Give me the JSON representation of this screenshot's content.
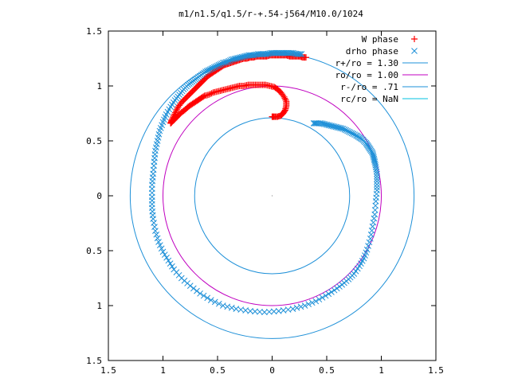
{
  "chart_data": {
    "type": "scatter",
    "title": "m1/n1.5/q1.5/r-+.54-j564/M10.0/1024",
    "xlabel": "",
    "ylabel": "",
    "xlim": [
      -1.5,
      1.5
    ],
    "ylim": [
      -1.5,
      1.5
    ],
    "x_ticks": [
      -1.5,
      -1,
      -0.5,
      0,
      0.5,
      1,
      1.5
    ],
    "x_tick_labels": [
      "1.5",
      "1",
      "0.5",
      "0",
      "0.5",
      "1",
      "1.5"
    ],
    "y_ticks": [
      1.5,
      1,
      0.5,
      0,
      -0.5,
      -1,
      -1.5
    ],
    "y_tick_labels": [
      "1.5",
      "1",
      "0.5",
      "0",
      "0.5",
      "1",
      "1.5"
    ],
    "grid": false,
    "legend_position": "top-right",
    "series": [
      {
        "name": "W phase",
        "kind": "points",
        "marker": "plus",
        "color": "#ff0000",
        "x": [
          0.31,
          0.28,
          0.25,
          0.22,
          0.19,
          0.16,
          0.13,
          0.1,
          0.07,
          0.04,
          0.01,
          -0.02,
          -0.05,
          -0.08,
          -0.11,
          -0.14,
          -0.17,
          -0.2,
          -0.23,
          -0.26,
          -0.29,
          -0.32,
          -0.35,
          -0.38,
          -0.41,
          -0.44,
          -0.47,
          -0.5,
          -0.53,
          -0.56,
          -0.59,
          -0.62,
          -0.65,
          -0.68,
          -0.71,
          -0.74,
          -0.77,
          -0.8,
          -0.83,
          -0.86,
          -0.88,
          -0.9,
          -0.92,
          -0.93,
          -0.92,
          -0.9,
          -0.88,
          -0.86,
          -0.83,
          -0.8,
          -0.77,
          -0.74,
          -0.71,
          -0.68,
          -0.65,
          -0.62,
          -0.58,
          -0.54,
          -0.5,
          -0.46,
          -0.42,
          -0.38,
          -0.34,
          -0.3,
          -0.26,
          -0.22,
          -0.18,
          -0.14,
          -0.1,
          -0.06,
          -0.02,
          0.02,
          0.05,
          0.08,
          0.11,
          0.13,
          0.13,
          0.12,
          0.1,
          0.08,
          0.05,
          0.02,
          0.0
        ],
        "y": [
          1.26,
          1.26,
          1.27,
          1.27,
          1.27,
          1.27,
          1.28,
          1.28,
          1.28,
          1.28,
          1.28,
          1.28,
          1.27,
          1.27,
          1.27,
          1.27,
          1.26,
          1.26,
          1.25,
          1.25,
          1.24,
          1.23,
          1.22,
          1.21,
          1.2,
          1.19,
          1.17,
          1.15,
          1.13,
          1.11,
          1.09,
          1.06,
          1.03,
          1.0,
          0.97,
          0.94,
          0.91,
          0.88,
          0.85,
          0.81,
          0.77,
          0.73,
          0.69,
          0.66,
          0.67,
          0.69,
          0.71,
          0.73,
          0.76,
          0.78,
          0.81,
          0.83,
          0.85,
          0.87,
          0.89,
          0.91,
          0.92,
          0.94,
          0.95,
          0.96,
          0.97,
          0.98,
          0.99,
          1.0,
          1.0,
          1.01,
          1.01,
          1.01,
          1.01,
          1.01,
          1.0,
          0.99,
          0.97,
          0.94,
          0.9,
          0.86,
          0.82,
          0.78,
          0.75,
          0.73,
          0.72,
          0.72,
          0.72
        ]
      },
      {
        "name": "drho phase",
        "kind": "points",
        "marker": "cross",
        "color": "#1e90d8",
        "x": [
          0.27,
          0.23,
          0.19,
          0.15,
          0.11,
          0.07,
          0.03,
          -0.01,
          -0.05,
          -0.09,
          -0.13,
          -0.17,
          -0.21,
          -0.25,
          -0.29,
          -0.33,
          -0.37,
          -0.41,
          -0.45,
          -0.49,
          -0.53,
          -0.57,
          -0.61,
          -0.65,
          -0.69,
          -0.73,
          -0.77,
          -0.81,
          -0.85,
          -0.89,
          -0.93,
          -0.97,
          -1.0,
          -1.03,
          -1.05,
          -1.07,
          -1.08,
          -1.09,
          -1.1,
          -1.1,
          -1.1,
          -1.09,
          -1.07,
          -1.04,
          -1.0,
          -0.95,
          -0.9,
          -0.83,
          -0.75,
          -0.66,
          -0.56,
          -0.45,
          -0.33,
          -0.2,
          -0.07,
          0.06,
          0.19,
          0.3,
          0.4,
          0.49,
          0.57,
          0.64,
          0.7,
          0.75,
          0.8,
          0.84,
          0.87,
          0.9,
          0.92,
          0.94,
          0.95,
          0.96,
          0.96,
          0.96,
          0.95,
          0.94,
          0.93,
          0.92,
          0.9,
          0.88,
          0.86,
          0.83,
          0.8,
          0.77,
          0.73,
          0.69,
          0.65,
          0.61,
          0.57,
          0.53,
          0.49,
          0.45,
          0.41,
          0.38
        ],
        "y": [
          1.29,
          1.29,
          1.3,
          1.3,
          1.3,
          1.3,
          1.3,
          1.3,
          1.29,
          1.29,
          1.29,
          1.28,
          1.28,
          1.27,
          1.26,
          1.25,
          1.24,
          1.22,
          1.21,
          1.19,
          1.17,
          1.15,
          1.13,
          1.1,
          1.07,
          1.04,
          1.01,
          0.97,
          0.92,
          0.87,
          0.81,
          0.74,
          0.67,
          0.59,
          0.5,
          0.41,
          0.31,
          0.2,
          0.1,
          -0.01,
          -0.11,
          -0.21,
          -0.32,
          -0.42,
          -0.51,
          -0.59,
          -0.67,
          -0.75,
          -0.82,
          -0.89,
          -0.95,
          -1.0,
          -1.03,
          -1.05,
          -1.06,
          -1.05,
          -1.03,
          -1.0,
          -0.96,
          -0.91,
          -0.86,
          -0.81,
          -0.76,
          -0.71,
          -0.64,
          -0.57,
          -0.49,
          -0.39,
          -0.28,
          -0.17,
          -0.05,
          0.05,
          0.13,
          0.2,
          0.26,
          0.31,
          0.35,
          0.39,
          0.42,
          0.45,
          0.48,
          0.51,
          0.53,
          0.55,
          0.57,
          0.59,
          0.61,
          0.62,
          0.63,
          0.64,
          0.65,
          0.66,
          0.66,
          0.66
        ]
      },
      {
        "name": "r+/ro = 1.30",
        "kind": "circle",
        "r": 1.3,
        "color": "#1e90d8"
      },
      {
        "name": "ro/ro = 1.00",
        "kind": "circle",
        "r": 1.0,
        "color": "#c000c0"
      },
      {
        "name": "r-/ro = .71",
        "kind": "circle",
        "r": 0.71,
        "color": "#1e90d8"
      },
      {
        "name": "rc/ro = NaN",
        "kind": "circle",
        "r": null,
        "color": "#00c0e0"
      }
    ]
  }
}
